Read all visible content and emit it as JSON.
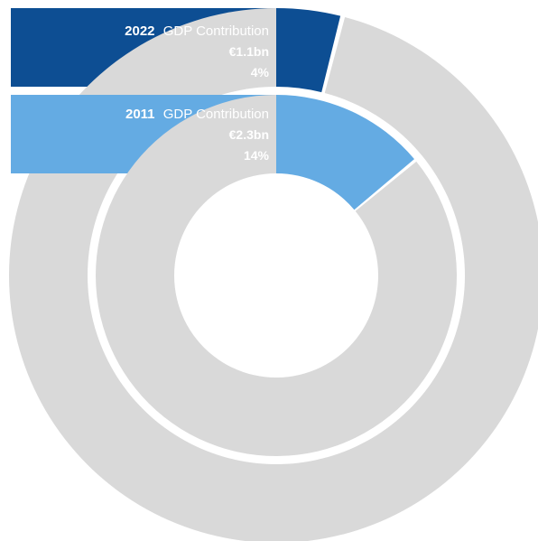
{
  "chart_data": {
    "type": "pie",
    "title": "",
    "rings": [
      {
        "name": "2022",
        "slices": [
          {
            "label": "2022 GDP Contribution",
            "year": "2022",
            "text": "GDP Contribution",
            "amount": "€1.1bn",
            "percent_label": "4%",
            "value": 4,
            "color": "#0d4e93"
          },
          {
            "label": "Other",
            "value": 96,
            "color": "#d9d9d9"
          }
        ]
      },
      {
        "name": "2011",
        "slices": [
          {
            "label": "2011 GDP Contribution",
            "year": "2011",
            "text": "GDP Contribution",
            "amount": "€2.3bn",
            "percent_label": "14%",
            "value": 14,
            "color": "#64abe3"
          },
          {
            "label": "Other",
            "value": 86,
            "color": "#d9d9d9"
          }
        ]
      }
    ],
    "colors": {
      "remainder": "#d9d9d9",
      "background": "#ffffff",
      "label_text": "#ffffff"
    }
  }
}
